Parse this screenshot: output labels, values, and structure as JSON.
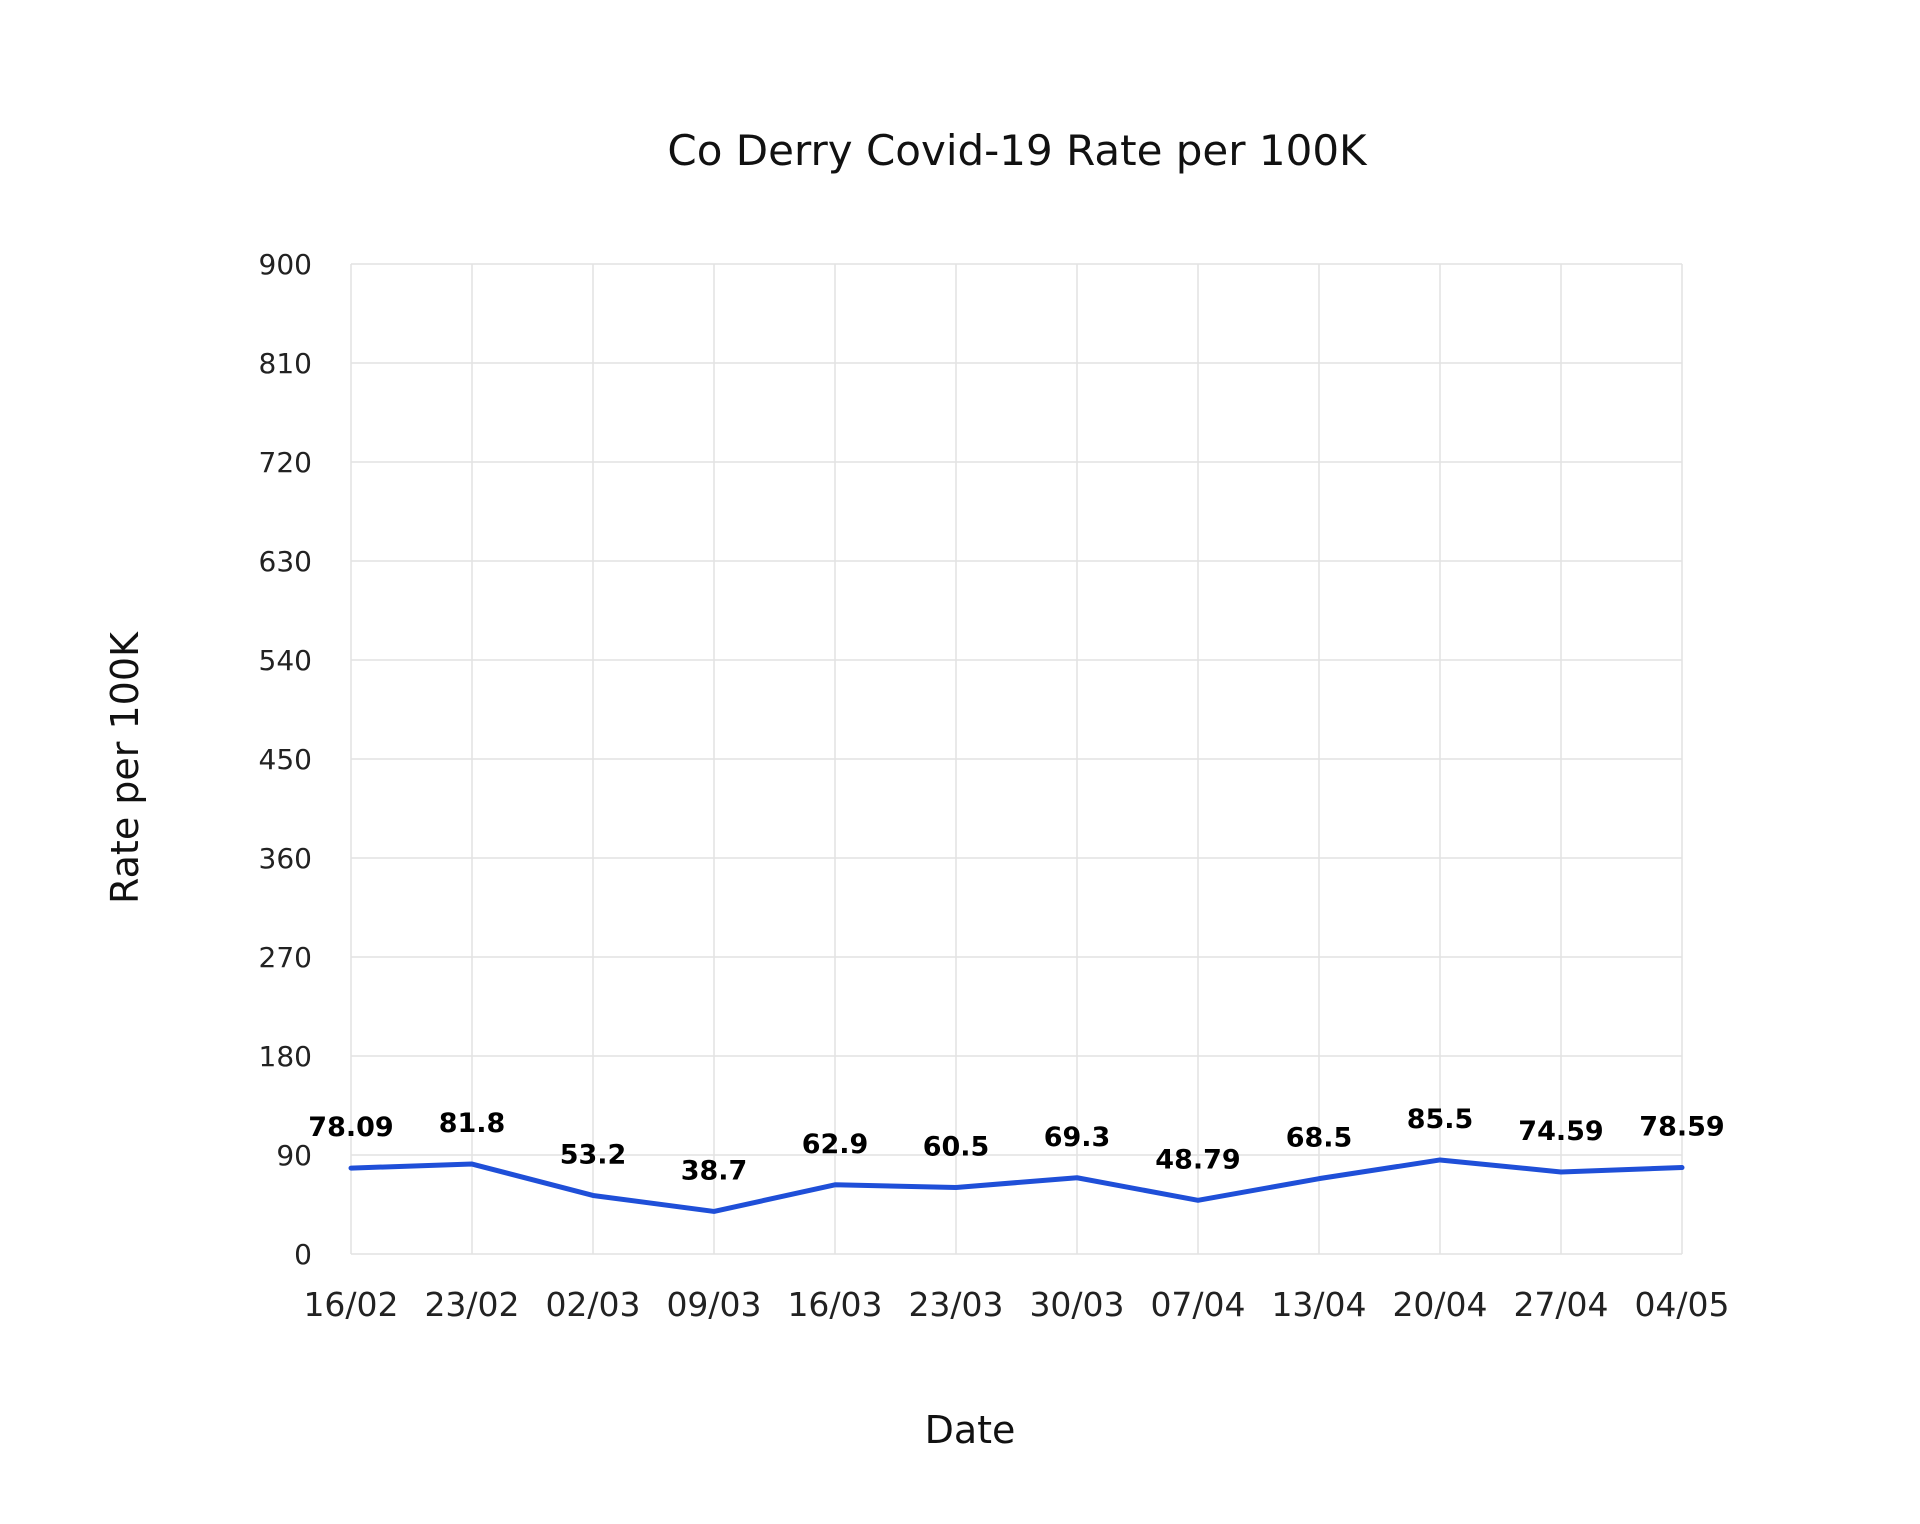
{
  "chart_data": {
    "type": "line",
    "title": "Co Derry Covid-19 Rate per 100K",
    "xlabel": "Date",
    "ylabel": "Rate per 100K",
    "categories": [
      "16/02",
      "23/02",
      "02/03",
      "09/03",
      "16/03",
      "23/03",
      "30/03",
      "07/04",
      "13/04",
      "20/04",
      "27/04",
      "04/05"
    ],
    "series": [
      {
        "values": [
          78.09,
          81.8,
          53.2,
          38.7,
          62.9,
          60.5,
          69.3,
          48.79,
          68.5,
          85.5,
          74.59,
          78.59
        ],
        "labels": [
          "78.09",
          "81.8",
          "53.2",
          "38.7",
          "62.9",
          "60.5",
          "69.3",
          "48.79",
          "68.5",
          "85.5",
          "74.59",
          "78.59"
        ],
        "color": "#1f4fd8"
      }
    ],
    "ylim": [
      0,
      900
    ],
    "yticks": [
      "0",
      "90",
      "180",
      "270",
      "360",
      "450",
      "540",
      "630",
      "720",
      "810",
      "900"
    ],
    "grid": true,
    "legend": "none"
  }
}
